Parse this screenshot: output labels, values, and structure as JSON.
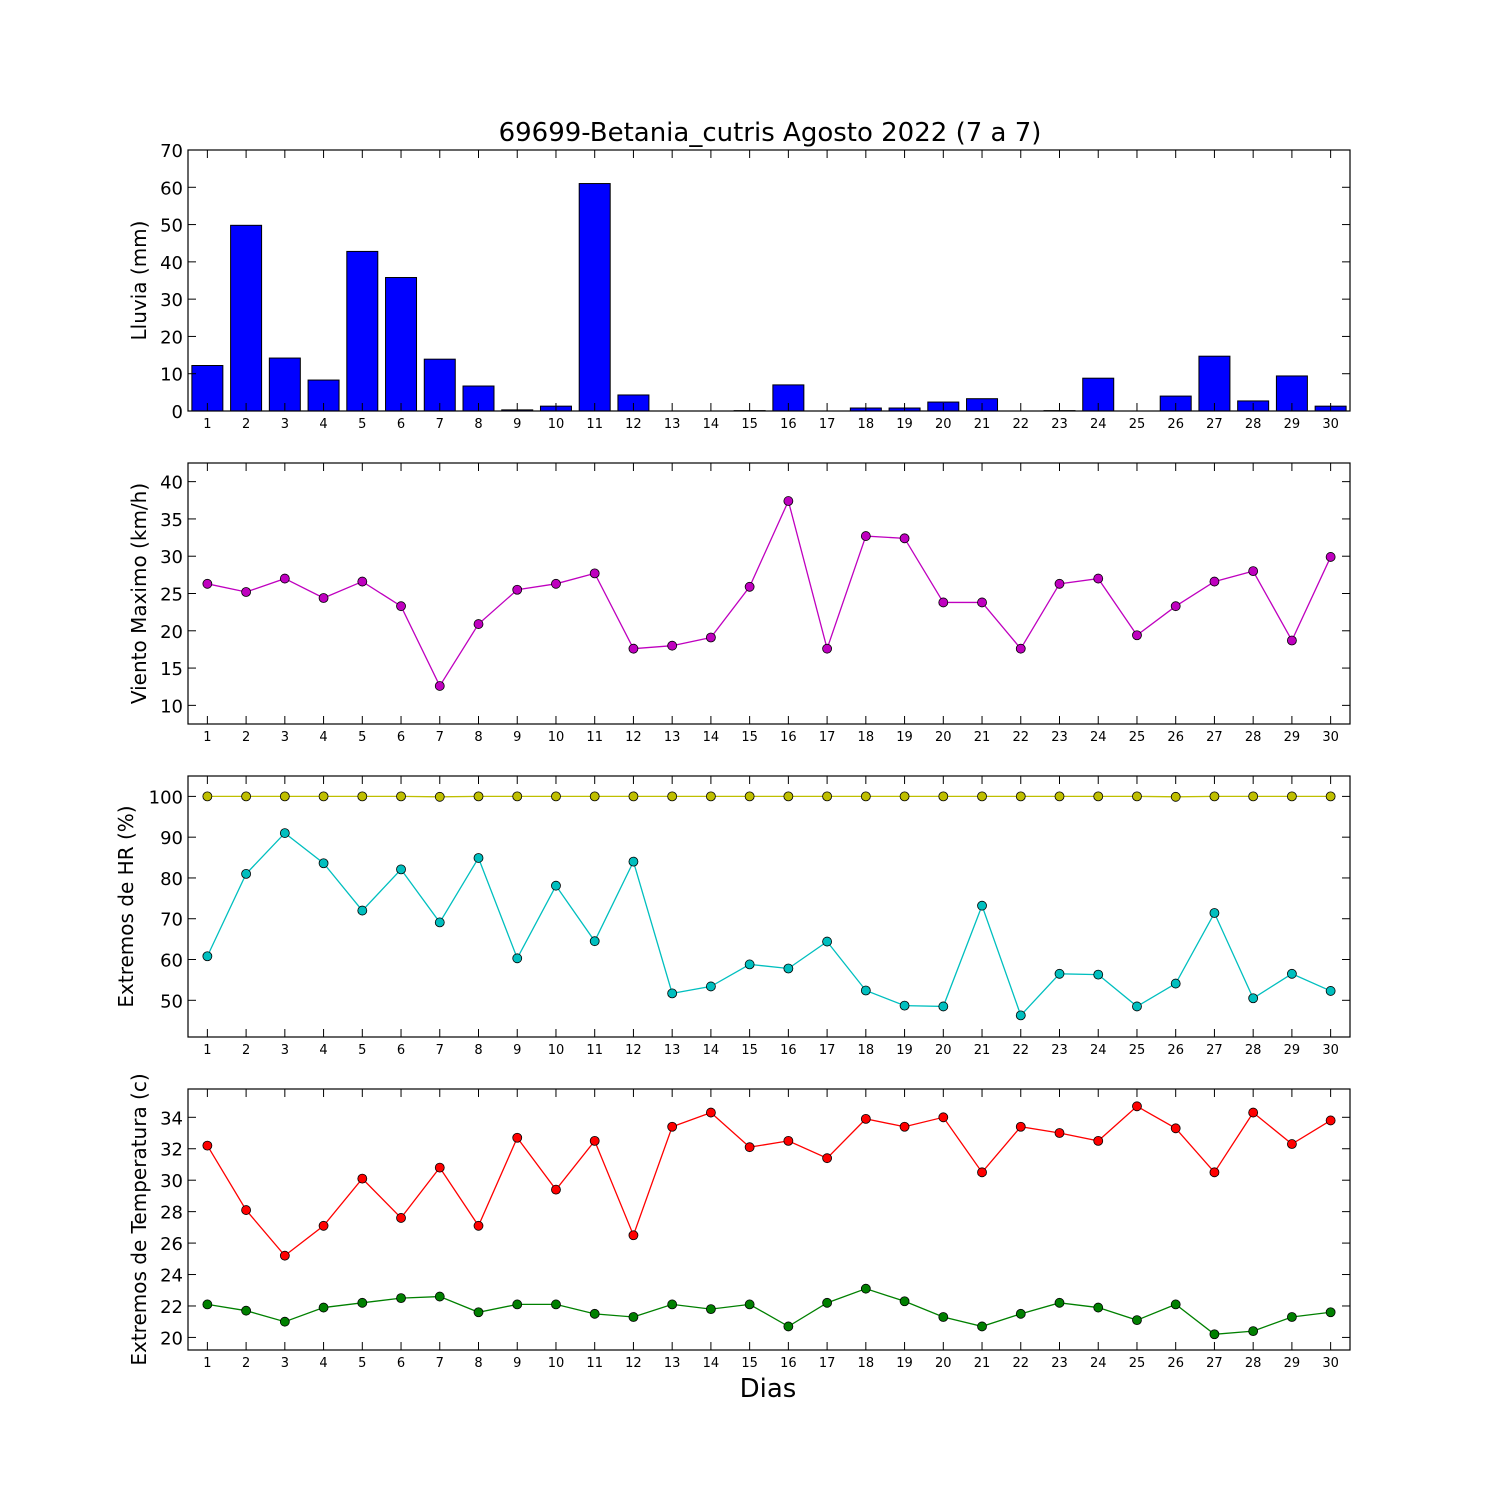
{
  "title": "69699-Betania_cutris Agosto 2022  (7 a 7)",
  "xlabel": "Dias",
  "chart_data": [
    {
      "type": "bar",
      "ylabel": "Lluvia (mm)",
      "ylim": [
        0,
        70
      ],
      "yticks": [
        0,
        10,
        20,
        30,
        40,
        50,
        60,
        70
      ],
      "xlim": [
        0.5,
        30.5
      ],
      "categories": [
        1,
        2,
        3,
        4,
        5,
        6,
        7,
        8,
        9,
        10,
        11,
        12,
        13,
        14,
        15,
        16,
        17,
        18,
        19,
        20,
        21,
        22,
        23,
        24,
        25,
        26,
        27,
        28,
        29,
        30
      ],
      "series": [
        {
          "color": "#0000ff",
          "values": [
            12.2,
            49.8,
            14.2,
            8.3,
            42.8,
            35.8,
            13.9,
            6.7,
            0.3,
            1.3,
            61.0,
            4.3,
            0,
            0,
            0.1,
            7.0,
            0,
            0.8,
            0.8,
            2.4,
            3.3,
            0,
            0.1,
            8.8,
            0,
            4.0,
            14.7,
            2.7,
            9.4,
            1.3
          ]
        }
      ]
    },
    {
      "type": "line",
      "ylabel": "Viento Maximo (km/h)",
      "ylim": [
        7.5,
        42.5
      ],
      "yticks": [
        10,
        15,
        20,
        25,
        30,
        35,
        40
      ],
      "xlim": [
        0.5,
        30.5
      ],
      "x": [
        1,
        2,
        3,
        4,
        5,
        6,
        7,
        8,
        9,
        10,
        11,
        12,
        13,
        14,
        15,
        16,
        17,
        18,
        19,
        20,
        21,
        22,
        23,
        24,
        25,
        26,
        27,
        28,
        29,
        30
      ],
      "series": [
        {
          "color": "#bf00bf",
          "values": [
            26.3,
            25.2,
            27.0,
            24.4,
            26.6,
            23.3,
            12.6,
            20.9,
            25.5,
            26.3,
            27.7,
            17.6,
            18.0,
            19.1,
            25.9,
            37.4,
            17.6,
            32.7,
            32.4,
            23.8,
            23.8,
            17.6,
            26.3,
            27.0,
            19.4,
            23.3,
            26.6,
            28.0,
            18.7,
            29.9
          ]
        }
      ]
    },
    {
      "type": "line",
      "ylabel": "Extremos de HR (%)",
      "ylim": [
        41,
        105
      ],
      "yticks": [
        50,
        60,
        70,
        80,
        90,
        100
      ],
      "xlim": [
        0.5,
        30.5
      ],
      "x": [
        1,
        2,
        3,
        4,
        5,
        6,
        7,
        8,
        9,
        10,
        11,
        12,
        13,
        14,
        15,
        16,
        17,
        18,
        19,
        20,
        21,
        22,
        23,
        24,
        25,
        26,
        27,
        28,
        29,
        30
      ],
      "series": [
        {
          "color": "#bfbf00",
          "values": [
            100,
            100,
            100,
            100,
            100,
            100,
            99.9,
            100,
            100,
            100,
            100,
            100,
            100,
            100,
            100,
            100,
            100,
            100,
            100,
            100,
            100,
            100,
            100,
            100,
            100,
            99.9,
            100,
            100,
            100,
            100
          ]
        },
        {
          "color": "#00bfbf",
          "values": [
            60.8,
            81.0,
            91.0,
            83.6,
            72.0,
            82.1,
            69.1,
            84.9,
            60.3,
            78.1,
            64.5,
            84.0,
            51.7,
            53.4,
            58.8,
            57.8,
            64.4,
            52.4,
            48.7,
            48.5,
            73.2,
            46.3,
            56.5,
            56.3,
            48.5,
            54.1,
            71.4,
            50.5,
            56.5,
            52.3
          ]
        }
      ]
    },
    {
      "type": "line",
      "ylabel": "Extremos de Temperatura (c)",
      "ylim": [
        19.2,
        35.8
      ],
      "yticks": [
        20,
        22,
        24,
        26,
        28,
        30,
        32,
        34
      ],
      "xlim": [
        0.5,
        30.5
      ],
      "x": [
        1,
        2,
        3,
        4,
        5,
        6,
        7,
        8,
        9,
        10,
        11,
        12,
        13,
        14,
        15,
        16,
        17,
        18,
        19,
        20,
        21,
        22,
        23,
        24,
        25,
        26,
        27,
        28,
        29,
        30
      ],
      "series": [
        {
          "color": "#ff0000",
          "values": [
            32.2,
            28.1,
            25.2,
            27.1,
            30.1,
            27.6,
            30.8,
            27.1,
            32.7,
            29.4,
            32.5,
            26.5,
            33.4,
            34.3,
            32.1,
            32.5,
            31.4,
            33.9,
            33.4,
            34.0,
            30.5,
            33.4,
            33.0,
            32.5,
            34.7,
            33.3,
            30.5,
            34.3,
            32.3,
            33.8
          ]
        },
        {
          "color": "#008000",
          "values": [
            22.1,
            21.7,
            21.0,
            21.9,
            22.2,
            22.5,
            22.6,
            21.6,
            22.1,
            22.1,
            21.5,
            21.3,
            22.1,
            21.8,
            22.1,
            20.7,
            22.2,
            23.1,
            22.3,
            21.3,
            20.7,
            21.5,
            22.2,
            21.9,
            21.1,
            22.1,
            20.2,
            20.4,
            21.3,
            21.6
          ]
        }
      ]
    }
  ]
}
